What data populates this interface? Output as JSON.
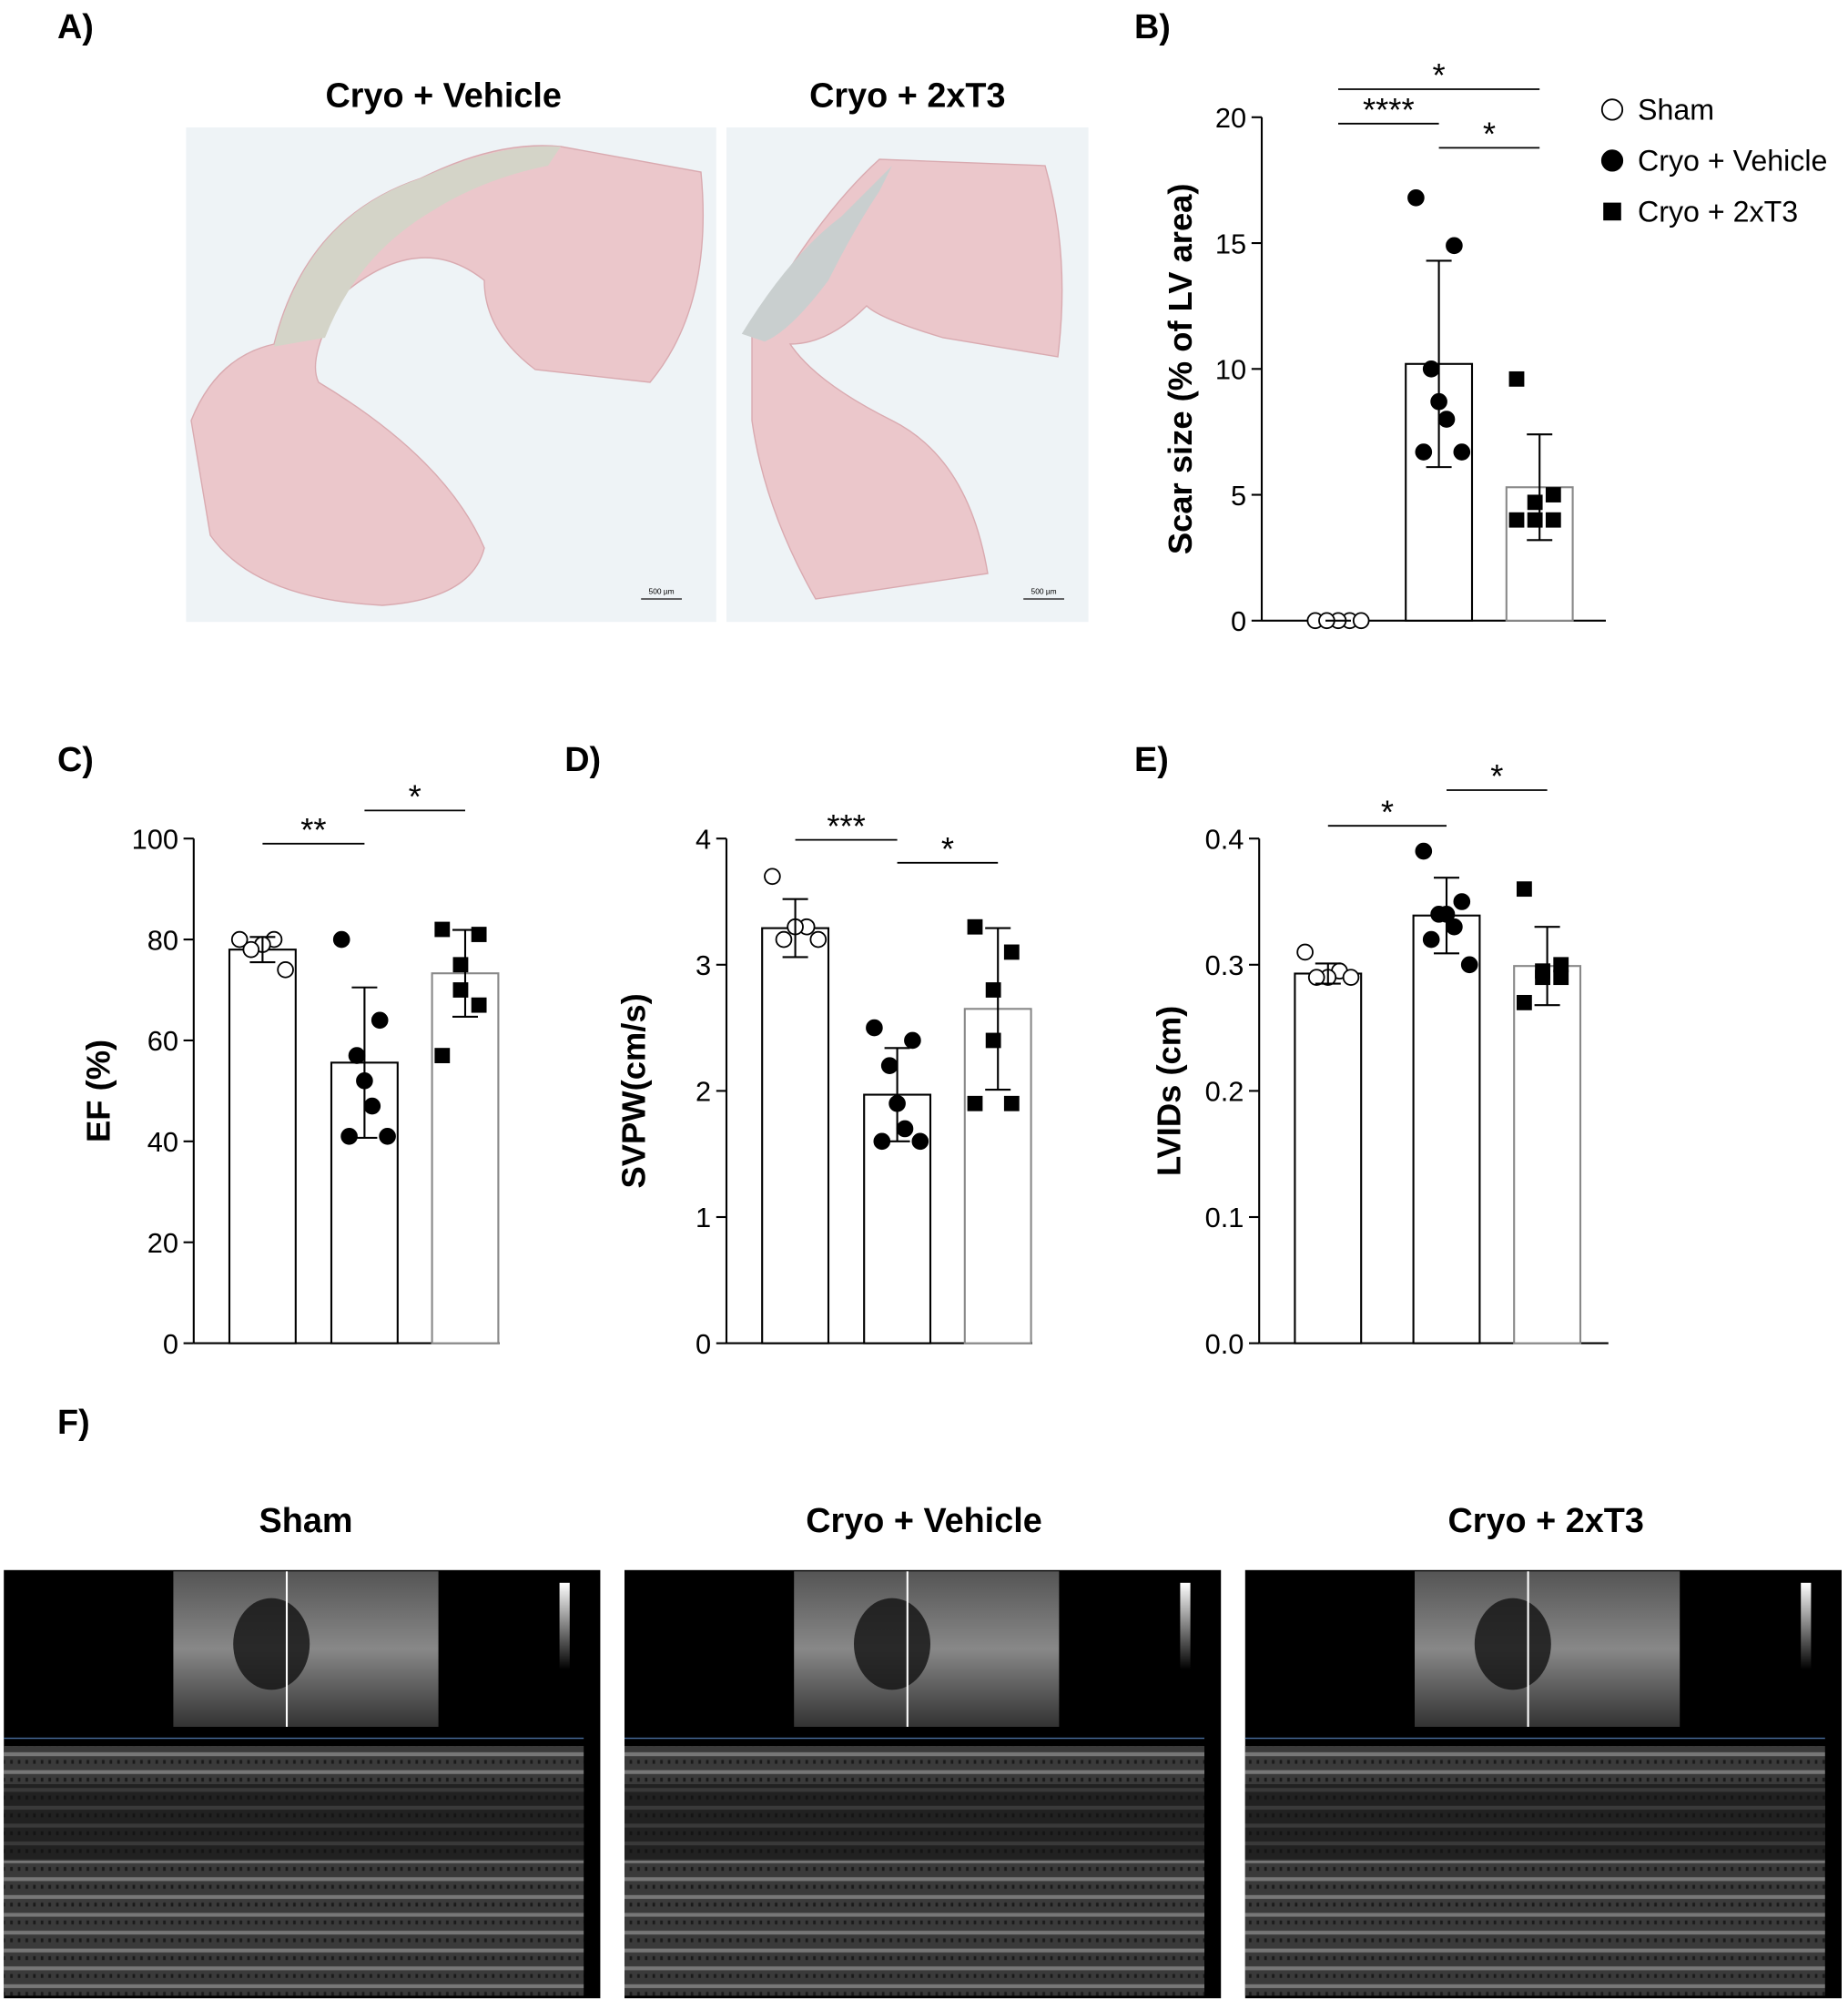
{
  "panel_labels": [
    "A)",
    "B)",
    "C)",
    "D)",
    "E)",
    "F)"
  ],
  "histology": {
    "titles": [
      "Cryo + Vehicle",
      "Cryo + 2xT3"
    ],
    "scale_bars": [
      "500 µm",
      "500 µm"
    ]
  },
  "echo": {
    "titles": [
      "Sham",
      "Cryo + Vehicle",
      "Cryo + 2xT3"
    ]
  },
  "chart_data": [
    {
      "type": "bar",
      "ylabel": "Scar size (% of LV area)",
      "categories": [
        null,
        null,
        null
      ],
      "values": [
        0,
        10.2,
        5.3
      ],
      "errors": [
        0,
        4.1,
        2.1
      ],
      "points": [
        [
          0,
          0,
          0,
          0,
          0
        ],
        [
          16.8,
          14.9,
          10.0,
          8.7,
          8.0,
          6.7,
          6.7
        ],
        [
          9.6,
          5.0,
          4.7,
          4.0,
          4.0,
          4.0
        ]
      ],
      "markers": [
        "open-circle",
        "filled-circle",
        "filled-square"
      ],
      "bar_fill": "#ffffff",
      "bar_edge_colors": [
        "#000000",
        "#000000",
        "#888888"
      ],
      "ylim": [
        0,
        20
      ],
      "yticks": [
        0,
        5,
        10,
        15,
        20
      ],
      "significance": [
        {
          "groups": [
            0,
            2
          ],
          "label": "*"
        },
        {
          "groups": [
            0,
            1
          ],
          "label": "****"
        },
        {
          "groups": [
            1,
            2
          ],
          "label": "*"
        }
      ],
      "legend_names": [
        "Sham",
        "Cryo + Vehicle",
        "Cryo + 2xT3"
      ]
    },
    {
      "type": "bar",
      "ylabel": "EF (%)",
      "categories": [
        null,
        null,
        null
      ],
      "values": [
        78,
        55.6,
        73.3
      ],
      "errors": [
        2.5,
        14.9,
        8.6
      ],
      "points": [
        [
          80,
          80,
          79,
          78,
          74
        ],
        [
          80,
          64,
          57,
          52,
          47,
          41,
          41
        ],
        [
          82,
          81,
          75,
          70,
          67,
          57
        ]
      ],
      "markers": [
        "open-circle",
        "filled-circle",
        "filled-square"
      ],
      "bar_fill": "#ffffff",
      "bar_edge_colors": [
        "#000000",
        "#000000",
        "#888888"
      ],
      "ylim": [
        0,
        100
      ],
      "yticks": [
        0,
        20,
        40,
        60,
        80,
        100
      ],
      "significance": [
        {
          "groups": [
            0,
            1
          ],
          "label": "**"
        },
        {
          "groups": [
            1,
            2
          ],
          "label": "*"
        }
      ]
    },
    {
      "type": "bar",
      "ylabel": "SVPW(cm/s)",
      "categories": [
        null,
        null,
        null
      ],
      "values": [
        3.29,
        1.97,
        2.65
      ],
      "errors": [
        0.23,
        0.37,
        0.64
      ],
      "points": [
        [
          3.7,
          3.3,
          3.3,
          3.2,
          3.2
        ],
        [
          2.5,
          2.4,
          2.2,
          1.9,
          1.7,
          1.6,
          1.6
        ],
        [
          3.3,
          3.1,
          2.8,
          2.4,
          1.9,
          1.9
        ]
      ],
      "markers": [
        "open-circle",
        "filled-circle",
        "filled-square"
      ],
      "bar_fill": "#ffffff",
      "bar_edge_colors": [
        "#000000",
        "#000000",
        "#888888"
      ],
      "ylim": [
        0,
        4
      ],
      "yticks": [
        0,
        1,
        2,
        3,
        4
      ],
      "significance": [
        {
          "groups": [
            0,
            1
          ],
          "label": "***"
        },
        {
          "groups": [
            1,
            2
          ],
          "label": "*"
        }
      ]
    },
    {
      "type": "bar",
      "ylabel": "LVIDs (cm)",
      "categories": [
        null,
        null,
        null
      ],
      "values": [
        0.293,
        0.339,
        0.299
      ],
      "errors": [
        0.008,
        0.03,
        0.031
      ],
      "points": [
        [
          0.31,
          0.295,
          0.29,
          0.29,
          0.29
        ],
        [
          0.39,
          0.35,
          0.34,
          0.34,
          0.33,
          0.32,
          0.3
        ],
        [
          0.36,
          0.3,
          0.295,
          0.29,
          0.29,
          0.27
        ]
      ],
      "markers": [
        "open-circle",
        "filled-circle",
        "filled-square"
      ],
      "bar_fill": "#ffffff",
      "bar_edge_colors": [
        "#000000",
        "#000000",
        "#888888"
      ],
      "ylim": [
        0,
        0.4
      ],
      "yticks": [
        {
          "value": 0,
          "label": "0.0"
        },
        0.1,
        0.2,
        0.3,
        0.4
      ],
      "significance": [
        {
          "groups": [
            0,
            1
          ],
          "label": "*"
        },
        {
          "groups": [
            1,
            2
          ],
          "label": "*"
        }
      ]
    }
  ]
}
